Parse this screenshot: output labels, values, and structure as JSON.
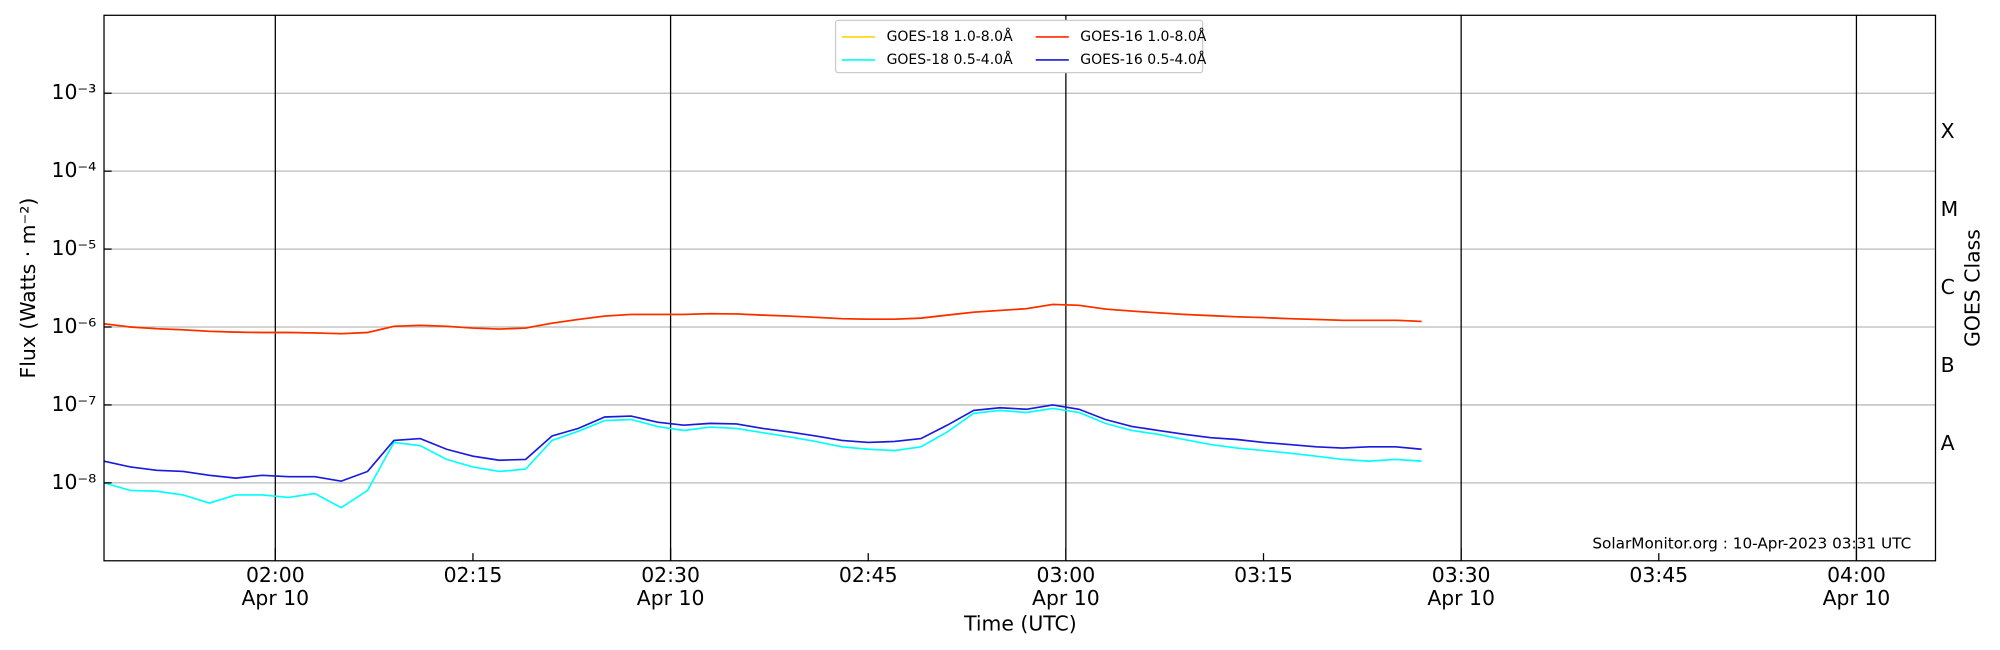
{
  "chart_data": {
    "type": "line",
    "xlabel": "Time (UTC)",
    "ylabel": "Flux (Watts · m⁻²)",
    "y2label": "GOES Class",
    "annotation": "SolarMonitor.org : 10-Apr-2023 03:31 UTC",
    "log_y": true,
    "grid": true,
    "legend": "upper center",
    "xlim": [
      "01:47",
      "04:06"
    ],
    "xticks": [
      {
        "value": "02:00",
        "label": "02:00",
        "date": "Apr 10"
      },
      "02:15",
      {
        "value": "02:30",
        "label": "02:30",
        "date": "Apr 10"
      },
      "02:45",
      {
        "value": "03:00",
        "label": "03:00",
        "date": "Apr 10"
      },
      "03:15",
      {
        "value": "03:30",
        "label": "03:30",
        "date": "Apr 10"
      },
      "03:45",
      {
        "value": "04:00",
        "label": "04:00",
        "date": "Apr 10"
      }
    ],
    "ylim": [
      1e-09,
      0.01
    ],
    "yticks": [
      {
        "value": 1e-08,
        "label": "10⁻⁸"
      },
      {
        "value": 1e-07,
        "label": "10⁻⁷"
      },
      {
        "value": 1e-06,
        "label": "10⁻⁶"
      },
      {
        "value": 1e-05,
        "label": "10⁻⁵"
      },
      {
        "value": 0.0001,
        "label": "10⁻⁴"
      },
      {
        "value": 0.001,
        "label": "10⁻³"
      }
    ],
    "y2lim": [
      1e-09,
      0.01
    ],
    "y2ticks": [
      {
        "value": 3.16e-08,
        "label": "A"
      },
      {
        "value": 3.16e-07,
        "label": "B"
      },
      {
        "value": 3.16e-06,
        "label": "C"
      },
      {
        "value": 3.16e-05,
        "label": "M"
      },
      {
        "value": 0.000316,
        "label": "X"
      }
    ],
    "x": [
      "01:47",
      "01:49",
      "01:51",
      "01:53",
      "01:55",
      "01:57",
      "01:59",
      "02:01",
      "02:03",
      "02:05",
      "02:07",
      "02:09",
      "02:11",
      "02:13",
      "02:15",
      "02:17",
      "02:19",
      "02:21",
      "02:23",
      "02:25",
      "02:27",
      "02:29",
      "02:31",
      "02:33",
      "02:35",
      "02:37",
      "02:39",
      "02:41",
      "02:43",
      "02:45",
      "02:47",
      "02:49",
      "02:51",
      "02:53",
      "02:55",
      "02:57",
      "02:59",
      "03:01",
      "03:03",
      "03:05",
      "03:07",
      "03:09",
      "03:11",
      "03:13",
      "03:15",
      "03:17",
      "03:19",
      "03:21",
      "03:23",
      "03:25",
      "03:27"
    ],
    "series": [
      {
        "name": "GOES-18 1.0-8.0Å",
        "color": "#ffd700",
        "values": [
          1.1e-06,
          1e-06,
          9.5e-07,
          9.2e-07,
          8.8e-07,
          8.6e-07,
          8.5e-07,
          8.5e-07,
          8.4e-07,
          8.2e-07,
          8.5e-07,
          1.02e-06,
          1.05e-06,
          1.02e-06,
          9.7e-07,
          9.4e-07,
          9.7e-07,
          1.12e-06,
          1.25e-06,
          1.38e-06,
          1.45e-06,
          1.45e-06,
          1.45e-06,
          1.48e-06,
          1.47e-06,
          1.42e-06,
          1.38e-06,
          1.33e-06,
          1.28e-06,
          1.26e-06,
          1.26e-06,
          1.3e-06,
          1.42e-06,
          1.55e-06,
          1.63e-06,
          1.72e-06,
          1.95e-06,
          1.9e-06,
          1.7e-06,
          1.6e-06,
          1.52e-06,
          1.45e-06,
          1.4e-06,
          1.35e-06,
          1.32e-06,
          1.28e-06,
          1.25e-06,
          1.22e-06,
          1.22e-06,
          1.22e-06,
          1.18e-06
        ]
      },
      {
        "name": "GOES-18 0.5-4.0Å",
        "color": "#00ffff",
        "values": [
          1e-08,
          8e-09,
          7.8e-09,
          7e-09,
          5.5e-09,
          7e-09,
          7e-09,
          6.5e-09,
          7.3e-09,
          4.8e-09,
          8e-09,
          3.3e-08,
          3e-08,
          2e-08,
          1.6e-08,
          1.4e-08,
          1.5e-08,
          3.5e-08,
          4.6e-08,
          6.3e-08,
          6.5e-08,
          5.3e-08,
          4.7e-08,
          5.2e-08,
          5e-08,
          4.4e-08,
          3.9e-08,
          3.4e-08,
          2.9e-08,
          2.7e-08,
          2.6e-08,
          2.9e-08,
          4.5e-08,
          7.8e-08,
          8.5e-08,
          8e-08,
          9e-08,
          8e-08,
          5.8e-08,
          4.7e-08,
          4.2e-08,
          3.6e-08,
          3.1e-08,
          2.8e-08,
          2.6e-08,
          2.4e-08,
          2.2e-08,
          2e-08,
          1.9e-08,
          2e-08,
          1.9e-08
        ]
      },
      {
        "name": "GOES-16 1.0-8.0Å",
        "color": "#ff2a00",
        "values": [
          1.1e-06,
          1e-06,
          9.5e-07,
          9.2e-07,
          8.8e-07,
          8.6e-07,
          8.5e-07,
          8.5e-07,
          8.4e-07,
          8.2e-07,
          8.5e-07,
          1.02e-06,
          1.05e-06,
          1.02e-06,
          9.7e-07,
          9.4e-07,
          9.7e-07,
          1.12e-06,
          1.25e-06,
          1.38e-06,
          1.45e-06,
          1.45e-06,
          1.45e-06,
          1.48e-06,
          1.47e-06,
          1.42e-06,
          1.38e-06,
          1.33e-06,
          1.28e-06,
          1.26e-06,
          1.26e-06,
          1.3e-06,
          1.42e-06,
          1.55e-06,
          1.63e-06,
          1.72e-06,
          1.95e-06,
          1.9e-06,
          1.7e-06,
          1.6e-06,
          1.52e-06,
          1.45e-06,
          1.4e-06,
          1.35e-06,
          1.32e-06,
          1.28e-06,
          1.25e-06,
          1.22e-06,
          1.22e-06,
          1.22e-06,
          1.18e-06
        ]
      },
      {
        "name": "GOES-16 0.5-4.0Å",
        "color": "#1a1adc",
        "values": [
          1.9e-08,
          1.6e-08,
          1.45e-08,
          1.4e-08,
          1.25e-08,
          1.15e-08,
          1.25e-08,
          1.2e-08,
          1.2e-08,
          1.05e-08,
          1.4e-08,
          3.5e-08,
          3.7e-08,
          2.7e-08,
          2.2e-08,
          1.95e-08,
          2e-08,
          4e-08,
          5e-08,
          7e-08,
          7.2e-08,
          6e-08,
          5.5e-08,
          5.8e-08,
          5.7e-08,
          5e-08,
          4.5e-08,
          4e-08,
          3.5e-08,
          3.3e-08,
          3.4e-08,
          3.7e-08,
          5.5e-08,
          8.5e-08,
          9.2e-08,
          8.8e-08,
          1e-07,
          8.8e-08,
          6.5e-08,
          5.3e-08,
          4.7e-08,
          4.2e-08,
          3.8e-08,
          3.6e-08,
          3.3e-08,
          3.1e-08,
          2.9e-08,
          2.8e-08,
          2.9e-08,
          2.9e-08,
          2.7e-08
        ]
      }
    ]
  }
}
